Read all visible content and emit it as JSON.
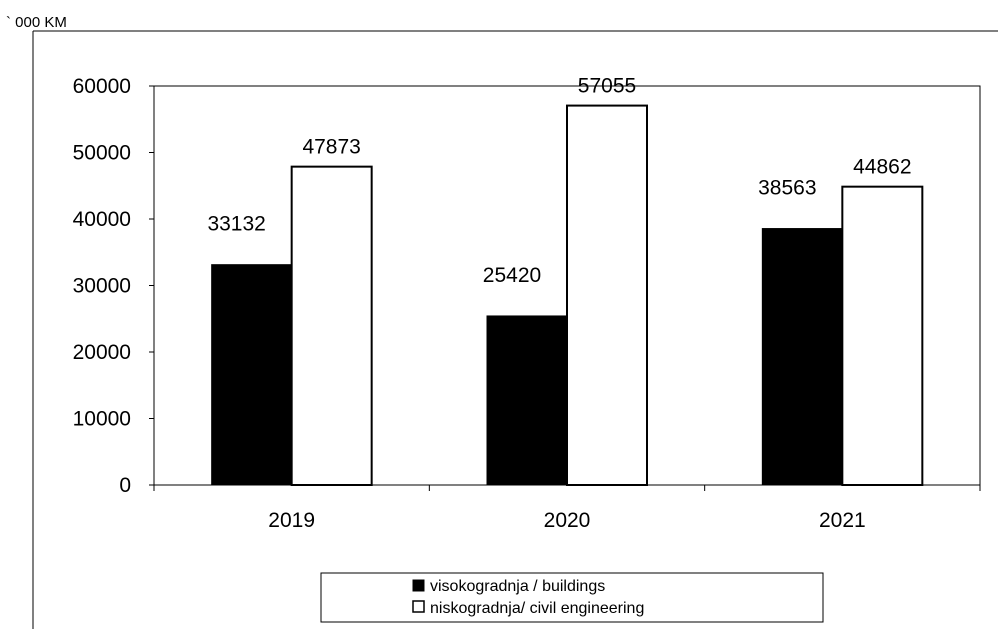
{
  "chart_data": {
    "type": "bar",
    "unit_label": "` 000 KM",
    "categories": [
      "2019",
      "2020",
      "2021"
    ],
    "series": [
      {
        "name": "visokogradnja / buildings",
        "values": [
          33132,
          25420,
          38563
        ],
        "color": "#000000"
      },
      {
        "name": "niskogradnja/ civil engineering",
        "values": [
          47873,
          57055,
          44862
        ],
        "color": "#ffffff"
      }
    ],
    "y_ticks": [
      "0",
      "10000",
      "20000",
      "30000",
      "40000",
      "50000",
      "60000"
    ],
    "ylim": [
      0,
      60000
    ],
    "grid": false,
    "legend_position": "bottom"
  }
}
